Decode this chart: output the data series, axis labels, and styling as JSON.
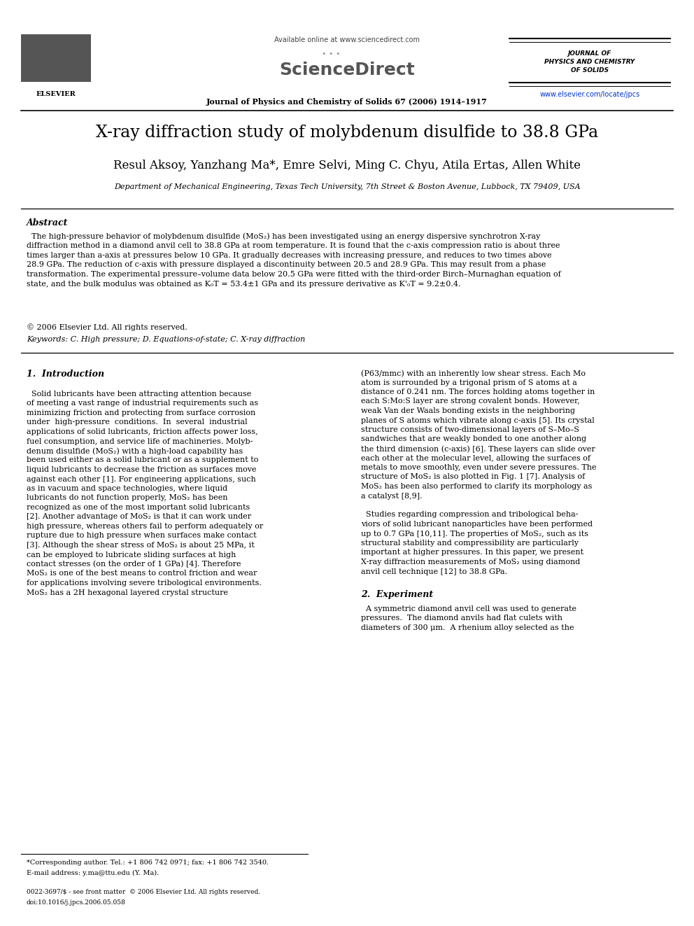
{
  "bg_color": "#ffffff",
  "page_width": 9.92,
  "page_height": 13.23,
  "dpi": 100,
  "header": {
    "available_online": "Available online at www.sciencedirect.com",
    "journal_name_line1": "JOURNAL OF",
    "journal_name_line2": "PHYSICS AND CHEMISTRY",
    "journal_name_line3": "OF SOLIDS",
    "journal_citation": "Journal of Physics and Chemistry of Solids 67 (2006) 1914–1917",
    "elsevier_url": "www.elsevier.com/locate/jpcs"
  },
  "title": "X-ray diffraction study of molybdenum disulfide to 38.8 GPa",
  "authors": "Resul Aksoy, Yanzhang Ma*, Emre Selvi, Ming C. Chyu, Atila Ertas, Allen White",
  "affiliation": "Department of Mechanical Engineering, Texas Tech University, 7th Street & Boston Avenue, Lubbock, TX 79409, USA",
  "abstract_title": "Abstract",
  "abstract_text": "  The high-pressure behavior of molybdenum disulfide (MoS₂) has been investigated using an energy dispersive synchrotron X-ray\ndiffraction method in a diamond anvil cell to 38.8 GPa at room temperature. It is found that the c-axis compression ratio is about three\ntimes larger than a-axis at pressures below 10 GPa. It gradually decreases with increasing pressure, and reduces to two times above\n28.9 GPa. The reduction of c-axis with pressure displayed a discontinuity between 20.5 and 28.9 GPa. This may result from a phase\ntransformation. The experimental pressure–volume data below 20.5 GPa were fitted with the third-order Birch–Murnaghan equation of\nstate, and the bulk modulus was obtained as K₀T = 53.4±1 GPa and its pressure derivative as K'₀T = 9.2±0.4.",
  "copyright": "© 2006 Elsevier Ltd. All rights reserved.",
  "keywords": "Keywords: C. High pressure; D. Equations-of-state; C. X-ray diffraction",
  "section1_title": "1.  Introduction",
  "intro_col1_lines": [
    "  Solid lubricants have been attracting attention because",
    "of meeting a vast range of industrial requirements such as",
    "minimizing friction and protecting from surface corrosion",
    "under  high-pressure  conditions.  In  several  industrial",
    "applications of solid lubricants, friction affects power loss,",
    "fuel consumption, and service life of machineries. Molyb-",
    "denum disulfide (MoS₂) with a high-load capability has",
    "been used either as a solid lubricant or as a supplement to",
    "liquid lubricants to decrease the friction as surfaces move",
    "against each other [1]. For engineering applications, such",
    "as in vacuum and space technologies, where liquid",
    "lubricants do not function properly, MoS₂ has been",
    "recognized as one of the most important solid lubricants",
    "[2]. Another advantage of MoS₂ is that it can work under",
    "high pressure, whereas others fail to perform adequately or",
    "rupture due to high pressure when surfaces make contact",
    "[3]. Although the shear stress of MoS₂ is about 25 MPa, it",
    "can be employed to lubricate sliding surfaces at high",
    "contact stresses (on the order of 1 GPa) [4]. Therefore",
    "MoS₂ is one of the best means to control friction and wear",
    "for applications involving severe tribological environments.",
    "MoS₂ has a 2H hexagonal layered crystal structure"
  ],
  "intro_col2_lines": [
    "(P63/mmc) with an inherently low shear stress. Each Mo",
    "atom is surrounded by a trigonal prism of S atoms at a",
    "distance of 0.241 nm. The forces holding atoms together in",
    "each S:Mo:S layer are strong covalent bonds. However,",
    "weak Van der Waals bonding exists in the neighboring",
    "planes of S atoms which vibrate along c-axis [5]. Its crystal",
    "structure consists of two-dimensional layers of S–Mo–S",
    "sandwiches that are weakly bonded to one another along",
    "the third dimension (c-axis) [6]. These layers can slide over",
    "each other at the molecular level, allowing the surfaces of",
    "metals to move smoothly, even under severe pressures. The",
    "structure of MoS₂ is also plotted in Fig. 1 [7]. Analysis of",
    "MoS₂ has been also performed to clarify its morphology as",
    "a catalyst [8,9].",
    "",
    "  Studies regarding compression and tribological beha-",
    "viors of solid lubricant nanoparticles have been performed",
    "up to 0.7 GPa [10,11]. The properties of MoS₂, such as its",
    "structural stability and compressibility are particularly",
    "important at higher pressures. In this paper, we present",
    "X-ray diffraction measurements of MoS₂ using diamond",
    "anvil cell technique [12] to 38.8 GPa."
  ],
  "section2_title": "2.  Experiment",
  "exp_col2_lines": [
    "  A symmetric diamond anvil cell was used to generate",
    "pressures.  The diamond anvils had flat culets with",
    "diameters of 300 μm.  A rhenium alloy selected as the"
  ],
  "footnote1": "*Corresponding author. Tel.: +1 806 742 0971; fax: +1 806 742 3540.",
  "footnote2": "E-mail address: y.ma@ttu.edu (Y. Ma).",
  "footer1": "0022-3697/$ - see front matter  © 2006 Elsevier Ltd. All rights reserved.",
  "footer2": "doi:10.1016/j.jpcs.2006.05.058"
}
